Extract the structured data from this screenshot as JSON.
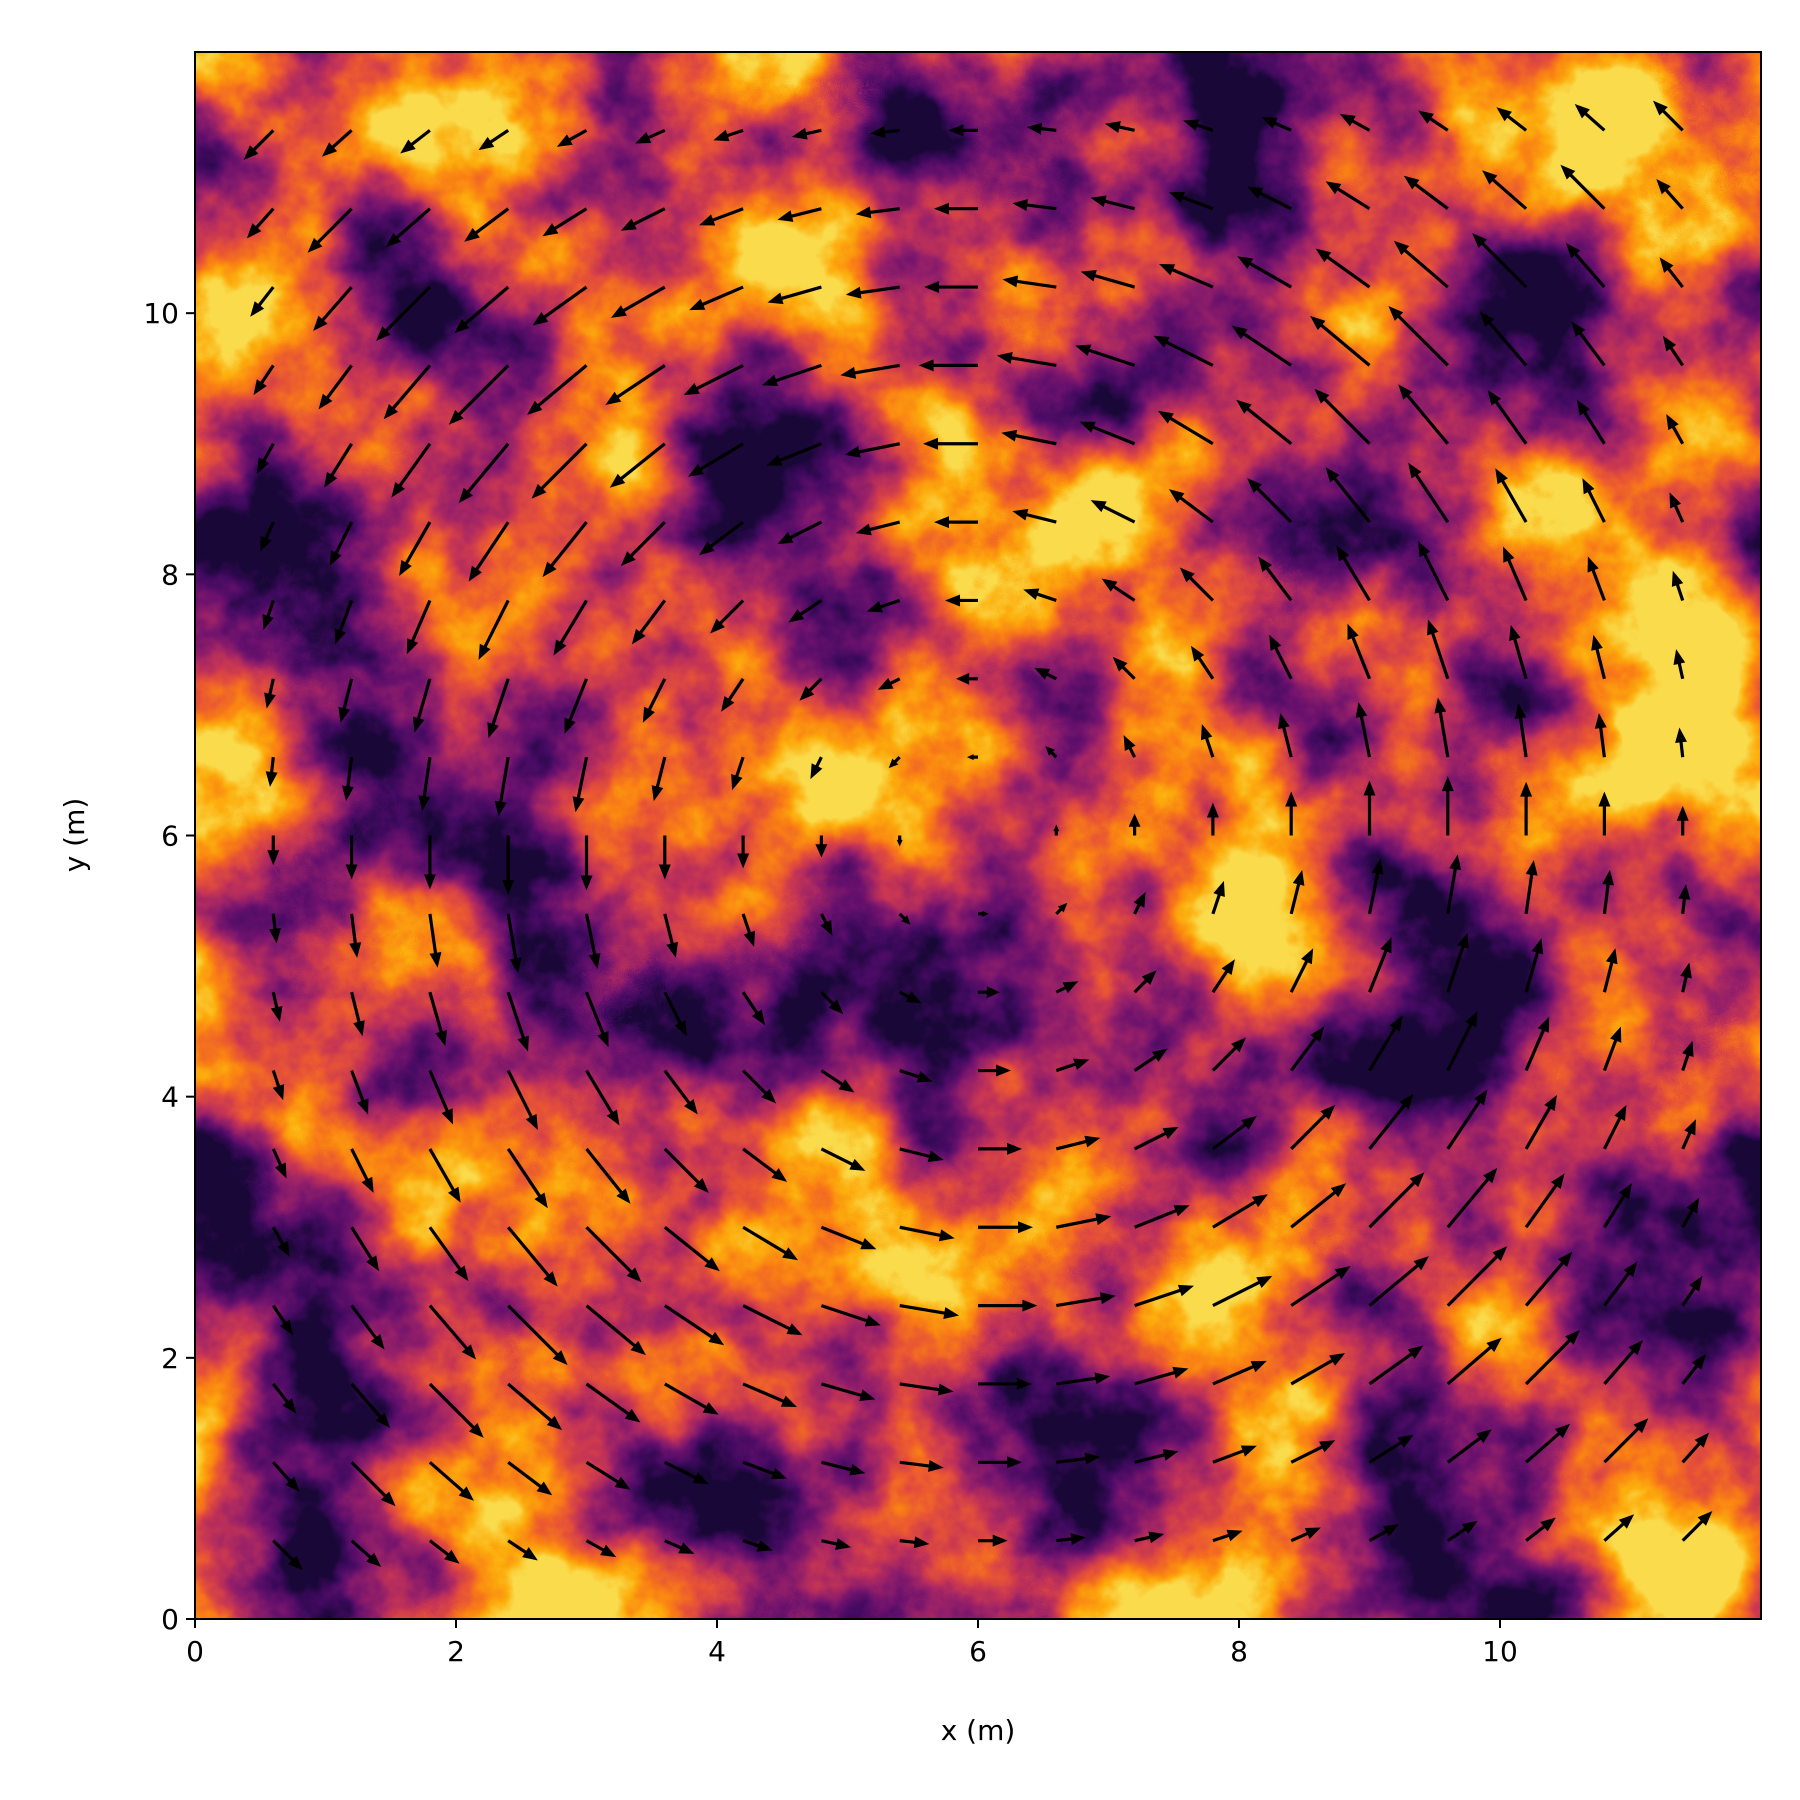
{
  "chart_data": {
    "type": "quiver",
    "xlabel": "x (m)",
    "ylabel": "y (m)",
    "xlim": [
      0,
      12
    ],
    "ylim": [
      0,
      12
    ],
    "xticks": [
      0,
      2,
      4,
      6,
      8,
      10
    ],
    "yticks": [
      0,
      2,
      4,
      6,
      8,
      10
    ],
    "color": "#000000",
    "x": [
      0.6,
      1.2,
      1.8,
      2.4,
      3,
      3.6,
      4.2,
      4.8,
      5.4,
      6,
      6.6,
      7.2,
      7.8,
      8.4,
      9,
      9.6,
      10.2,
      10.8,
      11.4
    ],
    "y": [
      0.6,
      1.2,
      1.8,
      2.4,
      3,
      3.6,
      4.2,
      4.8,
      5.4,
      6,
      6.6,
      7.2,
      7.8,
      8.4,
      9,
      9.6,
      10.2,
      10.8,
      11.4
    ],
    "u": [
      [
        2.7,
        2.7,
        2.7,
        2.7,
        2.7,
        2.7,
        2.7,
        2.7,
        2.7,
        2.7,
        2.7,
        2.7,
        2.7,
        2.7,
        2.7,
        2.7,
        2.7,
        2.7,
        2.7
      ],
      [
        2.4,
        4,
        4,
        4,
        4,
        4,
        4,
        4,
        4,
        4,
        4,
        4,
        4,
        4,
        4,
        4,
        4,
        4,
        2.4
      ],
      [
        2.1,
        3.5,
        4.9,
        4.9,
        4.9,
        4.9,
        4.9,
        4.9,
        4.9,
        4.9,
        4.9,
        4.9,
        4.9,
        4.9,
        4.9,
        4.9,
        4.9,
        3.5,
        2.1
      ],
      [
        1.8,
        3,
        4.2,
        5.4,
        5.4,
        5.4,
        5.4,
        5.4,
        5.4,
        5.4,
        5.4,
        5.4,
        5.4,
        5.4,
        5.4,
        5.4,
        4.2,
        3,
        1.8
      ],
      [
        1.5,
        2.5,
        3.5,
        4.5,
        5,
        5,
        5,
        5,
        5,
        5,
        5,
        5,
        5,
        5,
        5,
        4.5,
        3.5,
        2.5,
        1.5
      ],
      [
        1.2,
        2,
        2.8,
        3.6,
        4,
        4,
        4,
        4,
        4,
        4,
        4,
        4,
        4,
        4,
        4,
        3.6,
        2.8,
        2,
        1.2
      ],
      [
        0.9,
        1.5,
        2.1,
        2.7,
        3,
        3,
        3,
        3,
        3,
        3,
        3,
        3,
        3,
        3,
        3,
        2.7,
        2.1,
        1.5,
        0.9
      ],
      [
        0.6,
        1,
        1.4,
        1.8,
        2,
        2,
        2,
        2,
        2,
        2,
        2,
        2,
        2,
        2,
        2,
        1.8,
        1.4,
        1,
        0.6
      ],
      [
        0.3,
        0.5,
        0.7,
        0.9,
        1,
        1,
        1,
        1,
        1,
        1,
        1,
        1,
        1,
        1,
        1,
        0.9,
        0.7,
        0.5,
        0.3
      ],
      [
        0,
        0,
        0,
        0,
        0,
        0,
        0,
        0,
        0,
        0,
        0,
        0,
        0,
        0,
        0,
        0,
        0,
        0,
        0
      ],
      [
        -0.3,
        -0.5,
        -0.7,
        -0.9,
        -1,
        -1,
        -1,
        -1,
        -1,
        -1,
        -1,
        -1,
        -1,
        -1,
        -1,
        -0.9,
        -0.7,
        -0.5,
        -0.3
      ],
      [
        -0.6,
        -1,
        -1.4,
        -1.8,
        -2,
        -2,
        -2,
        -2,
        -2,
        -2,
        -2,
        -2,
        -2,
        -2,
        -2,
        -1.8,
        -1.4,
        -1,
        -0.6
      ],
      [
        -0.9,
        -1.5,
        -2.1,
        -2.7,
        -3,
        -3,
        -3,
        -3,
        -3,
        -3,
        -3,
        -3,
        -3,
        -3,
        -3,
        -2.7,
        -2.1,
        -1.5,
        -0.9
      ],
      [
        -1.2,
        -2,
        -2.8,
        -3.6,
        -4,
        -4,
        -4,
        -4,
        -4,
        -4,
        -4,
        -4,
        -4,
        -4,
        -4,
        -3.6,
        -2.8,
        -2,
        -1.2
      ],
      [
        -1.5,
        -2.5,
        -3.5,
        -4.5,
        -5,
        -5,
        -5,
        -5,
        -5,
        -5,
        -5,
        -5,
        -5,
        -5,
        -5,
        -4.5,
        -3.5,
        -2.5,
        -1.5
      ],
      [
        -1.8,
        -3,
        -4.2,
        -5.4,
        -5.4,
        -5.4,
        -5.4,
        -5.4,
        -5.4,
        -5.4,
        -5.4,
        -5.4,
        -5.4,
        -5.4,
        -5.4,
        -5.4,
        -4.2,
        -3,
        -1.8
      ],
      [
        -2.1,
        -3.5,
        -4.9,
        -4.9,
        -4.9,
        -4.9,
        -4.9,
        -4.9,
        -4.9,
        -4.9,
        -4.9,
        -4.9,
        -4.9,
        -4.9,
        -4.9,
        -4.9,
        -4.9,
        -3.5,
        -2.1
      ],
      [
        -2.4,
        -4,
        -4,
        -4,
        -4,
        -4,
        -4,
        -4,
        -4,
        -4,
        -4,
        -4,
        -4,
        -4,
        -4,
        -4,
        -4,
        -4,
        -2.4
      ],
      [
        -2.7,
        -2.7,
        -2.7,
        -2.7,
        -2.7,
        -2.7,
        -2.7,
        -2.7,
        -2.7,
        -2.7,
        -2.7,
        -2.7,
        -2.7,
        -2.7,
        -2.7,
        -2.7,
        -2.7,
        -2.7,
        -2.7
      ]
    ],
    "v": [
      [
        -2.7,
        -2.4,
        -2.1,
        -1.8,
        -1.5,
        -1.2,
        -0.9,
        -0.6,
        -0.3,
        0,
        0.3,
        0.6,
        0.9,
        1.2,
        1.5,
        1.8,
        2.1,
        2.4,
        2.7
      ],
      [
        -2.7,
        -4,
        -3.5,
        -3,
        -2.5,
        -2,
        -1.5,
        -1,
        -0.5,
        0,
        0.5,
        1,
        1.5,
        2,
        2.5,
        3,
        3.5,
        4,
        2.7
      ],
      [
        -2.7,
        -4,
        -4.9,
        -4.2,
        -3.5,
        -2.8,
        -2.1,
        -1.4,
        -0.7,
        0,
        0.7,
        1.4,
        2.1,
        2.8,
        3.5,
        4.2,
        4.9,
        4,
        2.7
      ],
      [
        -2.7,
        -4,
        -4.9,
        -5.4,
        -4.5,
        -3.6,
        -2.7,
        -1.8,
        -0.9,
        0,
        0.9,
        1.8,
        2.7,
        3.6,
        4.5,
        5.4,
        4.9,
        4,
        2.7
      ],
      [
        -2.7,
        -4,
        -4.9,
        -5.4,
        -5,
        -4,
        -3,
        -2,
        -1,
        0,
        1,
        2,
        3,
        4,
        5,
        5.4,
        4.9,
        4,
        2.7
      ],
      [
        -2.7,
        -4,
        -4.9,
        -5.4,
        -5,
        -4,
        -3,
        -2,
        -1,
        0,
        1,
        2,
        3,
        4,
        5,
        5.4,
        4.9,
        4,
        2.7
      ],
      [
        -2.7,
        -4,
        -4.9,
        -5.4,
        -5,
        -4,
        -3,
        -2,
        -1,
        0,
        1,
        2,
        3,
        4,
        5,
        5.4,
        4.9,
        4,
        2.7
      ],
      [
        -2.7,
        -4,
        -4.9,
        -5.4,
        -5,
        -4,
        -3,
        -2,
        -1,
        0,
        1,
        2,
        3,
        4,
        5,
        5.4,
        4.9,
        4,
        2.7
      ],
      [
        -2.7,
        -4,
        -4.9,
        -5.4,
        -5,
        -4,
        -3,
        -2,
        -1,
        0,
        1,
        2,
        3,
        4,
        5,
        5.4,
        4.9,
        4,
        2.7
      ],
      [
        -2.7,
        -4,
        -4.9,
        -5.4,
        -5,
        -4,
        -3,
        -2,
        -1,
        0,
        1,
        2,
        3,
        4,
        5,
        5.4,
        4.9,
        4,
        2.7
      ],
      [
        -2.7,
        -4,
        -4.9,
        -5.4,
        -5,
        -4,
        -3,
        -2,
        -1,
        0,
        1,
        2,
        3,
        4,
        5,
        5.4,
        4.9,
        4,
        2.7
      ],
      [
        -2.7,
        -4,
        -4.9,
        -5.4,
        -5,
        -4,
        -3,
        -2,
        -1,
        0,
        1,
        2,
        3,
        4,
        5,
        5.4,
        4.9,
        4,
        2.7
      ],
      [
        -2.7,
        -4,
        -4.9,
        -5.4,
        -5,
        -4,
        -3,
        -2,
        -1,
        0,
        1,
        2,
        3,
        4,
        5,
        5.4,
        4.9,
        4,
        2.7
      ],
      [
        -2.7,
        -4,
        -4.9,
        -5.4,
        -5,
        -4,
        -3,
        -2,
        -1,
        0,
        1,
        2,
        3,
        4,
        5,
        5.4,
        4.9,
        4,
        2.7
      ],
      [
        -2.7,
        -4,
        -4.9,
        -5.4,
        -5,
        -4,
        -3,
        -2,
        -1,
        0,
        1,
        2,
        3,
        4,
        5,
        5.4,
        4.9,
        4,
        2.7
      ],
      [
        -2.7,
        -4,
        -4.9,
        -5.4,
        -4.5,
        -3.6,
        -2.7,
        -1.8,
        -0.9,
        0,
        0.9,
        1.8,
        2.7,
        3.6,
        4.5,
        5.4,
        4.9,
        4,
        2.7
      ],
      [
        -2.7,
        -4,
        -4.9,
        -4.2,
        -3.5,
        -2.8,
        -2.1,
        -1.4,
        -0.7,
        0,
        0.7,
        1.4,
        2.1,
        2.8,
        3.5,
        4.2,
        4.9,
        4,
        2.7
      ],
      [
        -2.7,
        -4,
        -3.5,
        -3,
        -2.5,
        -2,
        -1.5,
        -1,
        -0.5,
        0,
        0.5,
        1,
        1.5,
        2,
        2.5,
        3,
        3.5,
        4,
        2.7
      ],
      [
        -2.7,
        -2.4,
        -2.1,
        -1.8,
        -1.5,
        -1.2,
        -0.9,
        -0.6,
        -0.3,
        0,
        0.3,
        0.6,
        0.9,
        1.2,
        1.5,
        1.8,
        2.1,
        2.4,
        2.7
      ]
    ]
  }
}
